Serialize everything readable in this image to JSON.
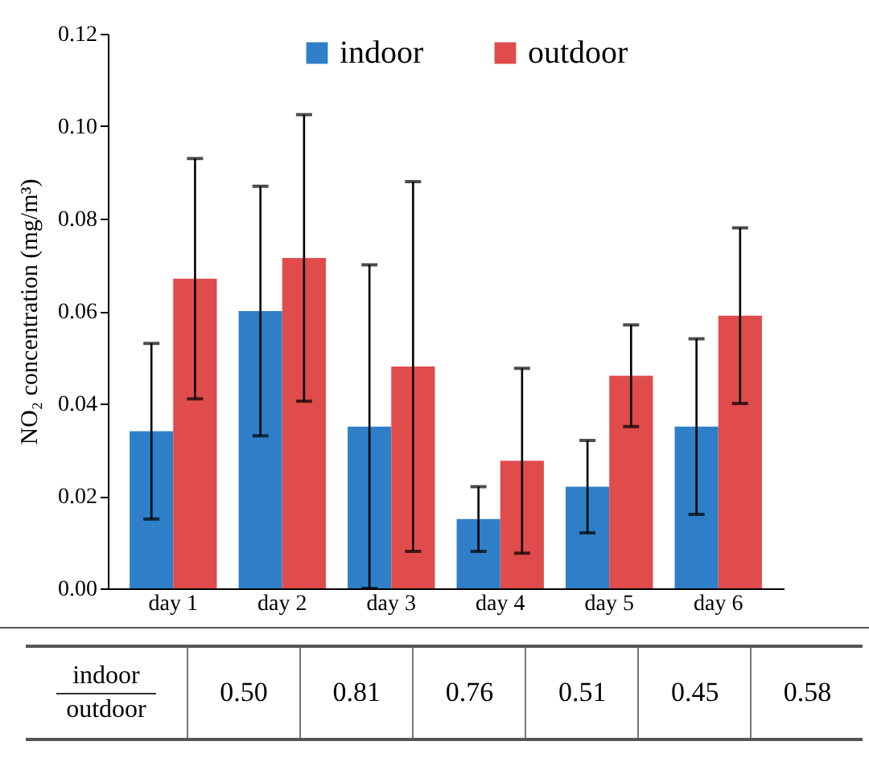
{
  "chart_data": {
    "type": "bar",
    "ylabel": "NO₂ concentration (mg/m³)",
    "categories": [
      "day 1",
      "day 2",
      "day 3",
      "day 4",
      "day 5",
      "day 6"
    ],
    "series": [
      {
        "name": "indoor",
        "color": "#2e7fc8",
        "values": [
          0.034,
          0.06,
          0.035,
          0.015,
          0.022,
          0.035
        ],
        "errors": [
          0.019,
          0.027,
          0.035,
          0.007,
          0.01,
          0.019
        ]
      },
      {
        "name": "outdoor",
        "color": "#e04b4b",
        "values": [
          0.067,
          0.0715,
          0.048,
          0.0276,
          0.046,
          0.059
        ],
        "errors": [
          0.026,
          0.031,
          0.04,
          0.02,
          0.011,
          0.019
        ]
      }
    ],
    "ylim": [
      0,
      0.12
    ],
    "yticks": [
      {
        "value": 0,
        "label": "0.00"
      },
      0.02,
      0.04,
      0.06,
      0.08,
      {
        "value": 0.1,
        "label": "0.10"
      },
      0.12
    ],
    "legend": "top",
    "grid": false,
    "annotations": [
      "indoor",
      "outdoor",
      "0.50",
      "0.81",
      "0.76",
      "0.51",
      "0.45",
      "0.58"
    ]
  }
}
